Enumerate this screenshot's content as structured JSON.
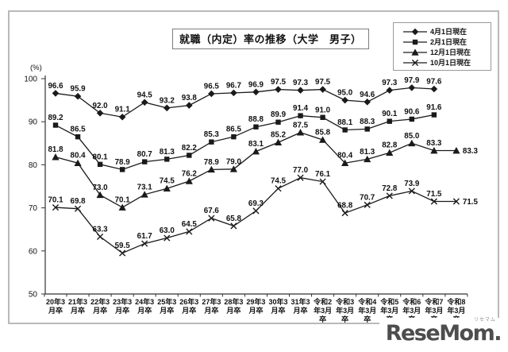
{
  "watermark": {
    "text": "ReseMom.",
    "ruby": "リセマム"
  },
  "chart_data": {
    "type": "line",
    "title": "就職（内定）率の推移（大学　男子）",
    "unit_label": "(%)",
    "xlabel": "",
    "ylabel": "%",
    "ylim": [
      50,
      100
    ],
    "yticks": [
      50,
      60,
      70,
      80,
      90,
      100
    ],
    "grid": false,
    "legend_position": "top-right",
    "line_color": "#1a1a1a",
    "label_color": "#111111",
    "categories": [
      "20年3月卒",
      "21年3月卒",
      "22年3月卒",
      "23年3月卒",
      "24年3月卒",
      "25年3月卒",
      "26年3月卒",
      "27年3月卒",
      "28年3月卒",
      "29年3月卒",
      "30年3月卒",
      "31年3月卒",
      "令和2年3月卒",
      "令和3年3月卒",
      "令和4年3月卒",
      "令和5年3月卒",
      "令和6年3月卒",
      "令和7年3月卒",
      "令和8年3月卒"
    ],
    "category_lines": [
      [
        "20年3",
        "月卒"
      ],
      [
        "21年3",
        "月卒"
      ],
      [
        "22年3",
        "月卒"
      ],
      [
        "23年3",
        "月卒"
      ],
      [
        "24年3",
        "月卒"
      ],
      [
        "25年3",
        "月卒"
      ],
      [
        "26年3",
        "月卒"
      ],
      [
        "27年3",
        "月卒"
      ],
      [
        "28年3",
        "月卒"
      ],
      [
        "29年3",
        "月卒"
      ],
      [
        "30年3",
        "月卒"
      ],
      [
        "31年3",
        "月卒"
      ],
      [
        "令和2",
        "年3月",
        "卒"
      ],
      [
        "令和3",
        "年3月",
        "卒"
      ],
      [
        "令和4",
        "年3月",
        "卒"
      ],
      [
        "令和5",
        "年3月",
        "卒"
      ],
      [
        "令和6",
        "年3月",
        "卒"
      ],
      [
        "令和7",
        "年3月",
        "卒"
      ],
      [
        "令和8",
        "年3月",
        "卒"
      ]
    ],
    "series": [
      {
        "name": "4月1日現在",
        "marker": "diamond",
        "values": [
          96.6,
          95.9,
          92.0,
          91.1,
          94.5,
          93.2,
          93.8,
          96.5,
          96.7,
          96.9,
          97.5,
          97.3,
          97.5,
          95.0,
          94.6,
          97.3,
          97.9,
          97.6
        ]
      },
      {
        "name": "2月1日現在",
        "marker": "square",
        "values": [
          89.2,
          86.5,
          80.1,
          78.9,
          80.7,
          81.3,
          82.2,
          85.3,
          86.5,
          88.8,
          89.9,
          91.4,
          91.0,
          88.1,
          88.3,
          90.1,
          90.6,
          91.6
        ]
      },
      {
        "name": "12月1日現在",
        "marker": "triangle",
        "values": [
          81.8,
          80.4,
          73.0,
          70.1,
          73.1,
          74.5,
          76.2,
          78.9,
          79.0,
          83.1,
          85.2,
          87.5,
          85.8,
          80.4,
          81.3,
          82.8,
          85.0,
          83.3,
          83.3
        ]
      },
      {
        "name": "10月1日現在",
        "marker": "x",
        "values": [
          70.1,
          69.8,
          63.3,
          59.5,
          61.7,
          63.0,
          64.5,
          67.6,
          65.8,
          69.3,
          74.5,
          77.0,
          76.1,
          68.8,
          70.7,
          72.8,
          73.9,
          71.5,
          71.5
        ]
      }
    ]
  }
}
